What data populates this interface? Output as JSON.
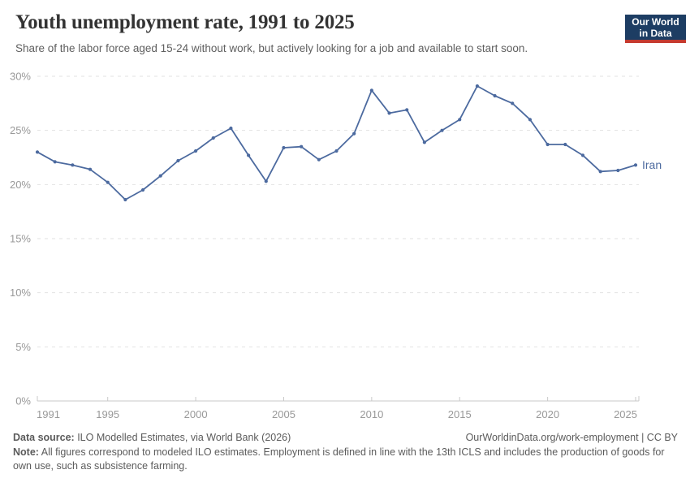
{
  "header": {
    "title": "Youth unemployment rate, 1991 to 2025",
    "subtitle": "Share of the labor force aged 15-24 without work, but actively looking for a job and available to start soon.",
    "logo": {
      "line1": "Our World",
      "line2": "in Data"
    }
  },
  "chart_data": {
    "type": "line",
    "title": "Youth unemployment rate, 1991 to 2025",
    "xlabel": "",
    "ylabel": "",
    "x": [
      1991,
      1992,
      1993,
      1994,
      1995,
      1996,
      1997,
      1998,
      1999,
      2000,
      2001,
      2002,
      2003,
      2004,
      2005,
      2006,
      2007,
      2008,
      2009,
      2010,
      2011,
      2012,
      2013,
      2014,
      2015,
      2016,
      2017,
      2018,
      2019,
      2020,
      2021,
      2022,
      2023,
      2024,
      2025
    ],
    "series": [
      {
        "name": "Iran",
        "color": "#4C6A9F",
        "values": [
          23.0,
          22.1,
          21.8,
          21.4,
          20.2,
          18.6,
          19.5,
          20.8,
          22.2,
          23.1,
          24.3,
          25.2,
          22.7,
          20.3,
          23.4,
          23.5,
          22.3,
          23.1,
          24.7,
          28.7,
          26.6,
          26.9,
          23.9,
          25.0,
          26.0,
          29.1,
          28.2,
          27.5,
          26.0,
          23.7,
          23.7,
          22.7,
          21.2,
          21.3,
          21.8
        ]
      }
    ],
    "ylim": [
      0,
      30
    ],
    "yticks": [
      0,
      5,
      10,
      15,
      20,
      25,
      30
    ],
    "ytick_suffix": "%",
    "xticks": [
      1991,
      1995,
      2000,
      2005,
      2010,
      2015,
      2020,
      2025
    ],
    "grid": "horizontal-dashed",
    "legend": "series-end-label"
  },
  "colors": {
    "line": "#4C6A9F",
    "axis_label": "#999999",
    "gridline": "#e2e2e2",
    "axis_line": "#c9c9c9",
    "logo_navy": "#1d3d63",
    "logo_red": "#C53A2F"
  },
  "footer": {
    "datasource_label": "Data source:",
    "datasource_text": " ILO Modelled Estimates, via World Bank (2026)",
    "link_text": "OurWorldinData.org/work-employment | CC BY",
    "note_label": "Note:",
    "note_text": " All figures correspond to modeled ILO estimates. Employment is defined in line with the 13th ICLS and includes the production of goods for own use, such as subsistence farming."
  }
}
